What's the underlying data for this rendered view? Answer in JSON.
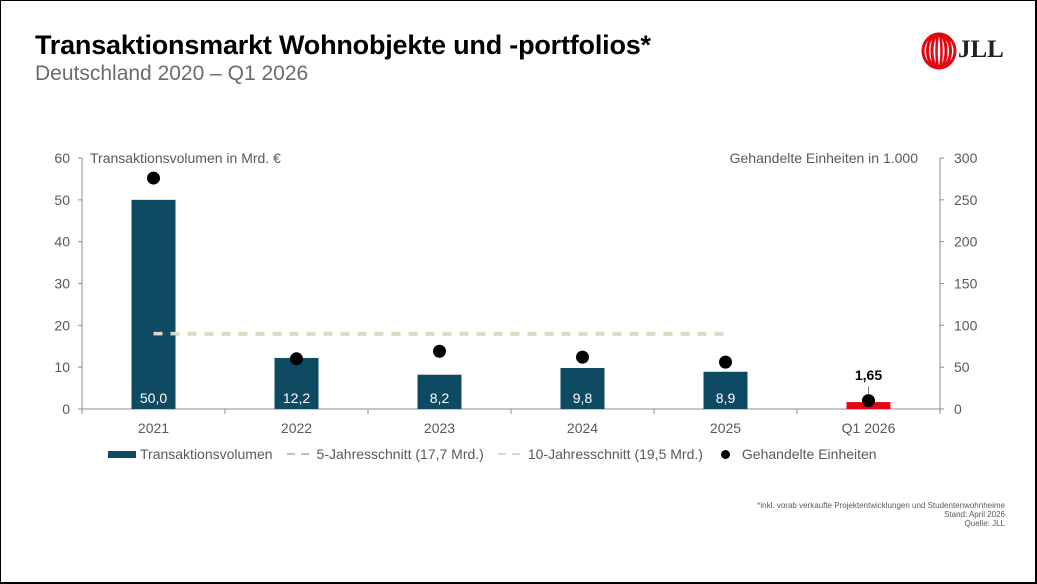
{
  "header": {
    "title": "Transaktionsmarkt Wohnobjekte und -portfolios*",
    "subtitle": "Deutschland 2020 – Q1 2026",
    "logo_text": "JLL",
    "logo_icon": "jll-rings-logo-icon"
  },
  "colors": {
    "bar": "#0f4a63",
    "bar_highlight": "#e30613",
    "avg5": "#bfbfbf",
    "avg10": "#ddd9c4",
    "points": "#000000",
    "axis": "#8c8c8c",
    "text": "#595959"
  },
  "chart_data": {
    "type": "bar",
    "title": "Transaktionsmarkt Wohnobjekte und -portfolios*",
    "subtitle": "Deutschland 2020 – Q1 2026",
    "categories": [
      "2021",
      "2022",
      "2023",
      "2024",
      "2025",
      "Q1 2026"
    ],
    "ylabel": "Transaktionsvolumen in Mrd. €",
    "y2label": "Gehandelte Einheiten in 1.000",
    "ylim": [
      0,
      60
    ],
    "yticks": [
      0,
      10,
      20,
      30,
      40,
      50,
      60
    ],
    "y2lim": [
      0,
      300
    ],
    "y2ticks": [
      0,
      50,
      100,
      150,
      200,
      250,
      300
    ],
    "grid": false,
    "legend_position": "bottom",
    "series": [
      {
        "name": "Transaktionsvolumen",
        "type": "bar",
        "axis": "left",
        "values": [
          50.0,
          12.2,
          8.2,
          9.8,
          8.9,
          1.65
        ],
        "labels": [
          "50,0",
          "12,2",
          "8,2",
          "9,8",
          "8,9",
          "1,65"
        ],
        "highlight_last": true
      },
      {
        "name": "5-Jahresschnitt (17,7 Mrd.)",
        "type": "line",
        "style": "dashed",
        "axis": "left",
        "value": 17.7,
        "span": [
          "2021",
          "2025"
        ]
      },
      {
        "name": "10-Jahresschnitt (19,5 Mrd.)",
        "type": "line",
        "style": "dashed",
        "axis": "left",
        "value": 19.5,
        "span": [
          "2021",
          "2025"
        ]
      },
      {
        "name": "Gehandelte Einheiten",
        "type": "scatter",
        "axis": "right",
        "values": [
          276,
          60,
          69,
          62,
          56,
          10
        ]
      }
    ]
  },
  "legend": [
    {
      "label": "Transaktionsvolumen",
      "kind": "bar"
    },
    {
      "label": "5-Jahresschnitt (17,7 Mrd.)",
      "kind": "dash-avg5"
    },
    {
      "label": "10-Jahresschnitt (19,5 Mrd.)",
      "kind": "dash-avg10"
    },
    {
      "label": "Gehandelte Einheiten",
      "kind": "dot"
    }
  ],
  "footnote": {
    "line1": "*inkl. vorab verkaufte Projektentwicklungen und Studentenwohnheime",
    "line2": "Stand: April 2026",
    "line3": "Quelle: JLL"
  }
}
